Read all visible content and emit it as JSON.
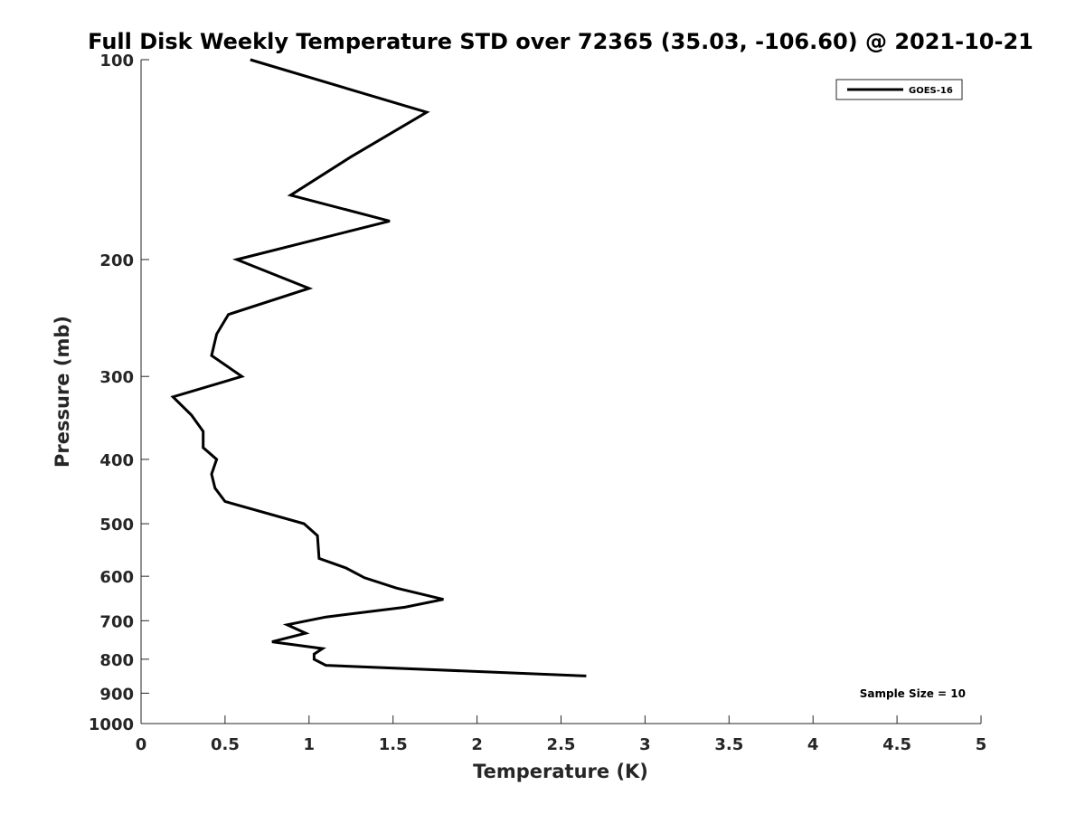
{
  "chart_data": {
    "type": "line",
    "title": "Full Disk Weekly Temperature STD over 72365 (35.03, -106.60) @ 2021-10-21",
    "xlabel": "Temperature (K)",
    "ylabel": "Pressure (mb)",
    "xlim": [
      0,
      5
    ],
    "ylim": [
      100,
      1000
    ],
    "y_scale": "log",
    "y_reversed": true,
    "grid": false,
    "legend_placement": "top-right",
    "x_ticks": [
      "0",
      "0.5",
      "1",
      "1.5",
      "2",
      "2.5",
      "3",
      "3.5",
      "4",
      "4.5",
      "5"
    ],
    "y_ticks": [
      "100",
      "200",
      "300",
      "400",
      "500",
      "600",
      "700",
      "800",
      "900",
      "1000"
    ],
    "series": [
      {
        "name": "GOES-16",
        "color": "#000000",
        "x": [
          0.65,
          1.7,
          1.25,
          0.89,
          1.48,
          0.57,
          1.0,
          0.52,
          0.45,
          0.42,
          0.6,
          0.19,
          0.3,
          0.37,
          0.37,
          0.45,
          0.42,
          0.44,
          0.5,
          0.97,
          1.05,
          1.06,
          1.22,
          1.33,
          1.52,
          1.8,
          1.57,
          1.1,
          0.87,
          0.98,
          0.78,
          1.08,
          1.03,
          1.03,
          1.1,
          2.65
        ],
        "y": [
          100,
          120,
          140,
          160,
          175,
          200,
          221,
          242,
          259,
          279,
          300,
          322,
          343,
          363,
          384,
          400,
          421,
          442,
          463,
          500,
          521,
          564,
          583,
          603,
          625,
          650,
          668,
          691,
          710,
          731,
          753,
          771,
          786,
          800,
          817,
          848
        ]
      }
    ],
    "annotations": [
      "Sample Size = 10"
    ]
  }
}
